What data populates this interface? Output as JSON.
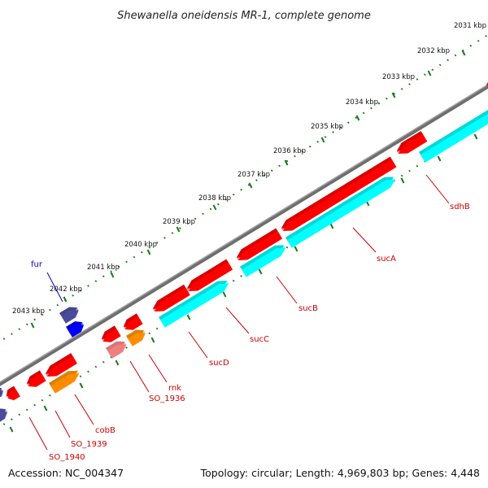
{
  "title": "Shewanella oneidensis MR-1, complete genome",
  "accession": "Accession: NC_004347",
  "summary": "Topology: circular; Length: 4,969,803 bp; Genes: 4,448",
  "colors": {
    "backbone": "#7a7a7a",
    "tick": "#1a7a1a",
    "label_red": "#cc0000",
    "label_blue": "#0000cc",
    "gene_red": "#ff0000",
    "gene_cyan": "#00ffff",
    "gene_orange": "#ff8c00",
    "gene_pink": "#f08080",
    "gene_navy": "#4b4b9a",
    "gene_blue": "#0000ff"
  },
  "scale_labels": [
    "2031 kbp",
    "2032 kbp",
    "2033 kbp",
    "2034 kbp",
    "2035 kbp",
    "2036 kbp",
    "2037 kbp",
    "2038 kbp",
    "2039 kbp",
    "2040 kbp",
    "2041 kbp",
    "2042 kbp",
    "2043 kbp"
  ],
  "gene_labels": [
    {
      "name": "sdhB",
      "color": "red"
    },
    {
      "name": "sucA",
      "color": "red"
    },
    {
      "name": "sucB",
      "color": "red"
    },
    {
      "name": "sucC",
      "color": "red"
    },
    {
      "name": "sucD",
      "color": "red"
    },
    {
      "name": "rnk",
      "color": "red"
    },
    {
      "name": "SO_1936",
      "color": "red"
    },
    {
      "name": "cobB",
      "color": "red"
    },
    {
      "name": "SO_1939",
      "color": "red"
    },
    {
      "name": "SO_1940",
      "color": "red"
    },
    {
      "name": "fur",
      "color": "blue"
    }
  ]
}
